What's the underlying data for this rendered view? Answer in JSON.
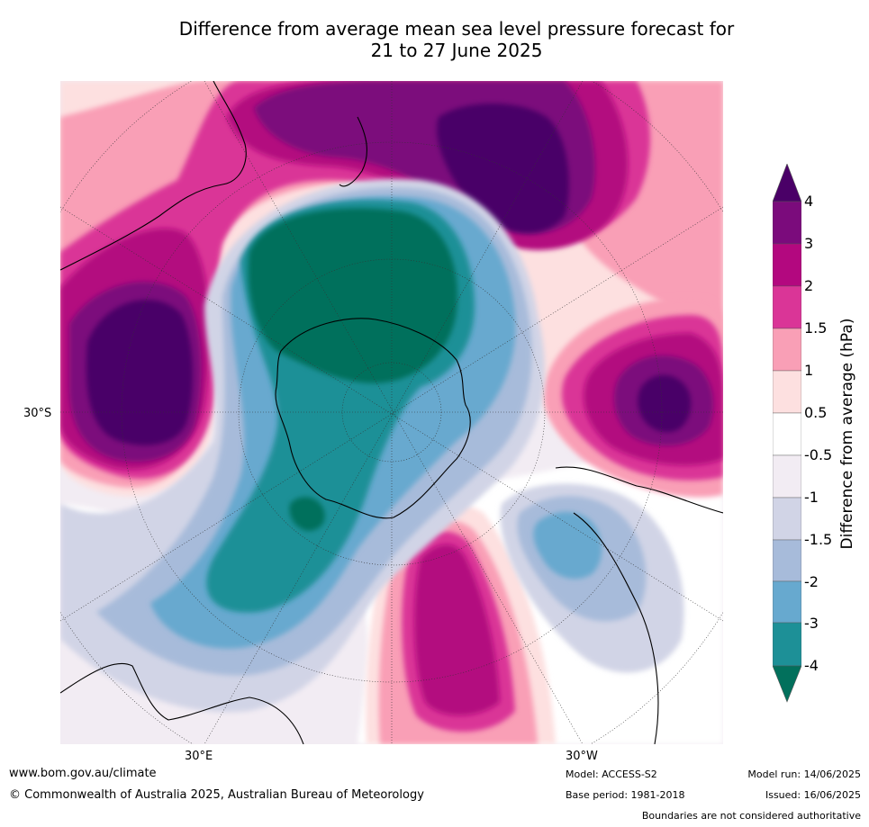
{
  "title_line1": "Difference from average mean sea level pressure forecast for",
  "title_line2": "21 to 27 June 2025",
  "map": {
    "lat_label": "30°S",
    "lon_label_east": "30°E",
    "lon_label_west": "30°W"
  },
  "colorbar": {
    "label": "Difference from average (hPa)",
    "ticks": [
      "4",
      "3",
      "2",
      "1.5",
      "1",
      "0.5",
      "-0.5",
      "-1",
      "-1.5",
      "-2",
      "-3",
      "-4"
    ],
    "colors_top_to_bottom": [
      "#4a0067",
      "#7b0b7c",
      "#b3087f",
      "#da3597",
      "#f99fb6",
      "#fde0e0",
      "#ffffff",
      "#f2ecf3",
      "#d1d4e6",
      "#a7bbda",
      "#67a9cf",
      "#1d9097",
      "#02705c"
    ]
  },
  "footer": {
    "url": "www.bom.gov.au/climate",
    "copyright": "© Commonwealth of Australia 2025, Australian Bureau of Meteorology",
    "model": "Model: ACCESS-S2",
    "base_period": "Base period: 1981-2018",
    "model_run": "Model run: 14/06/2025",
    "issued": "Issued: 16/06/2025",
    "disclaimer": "Boundaries are not considered authoritative"
  }
}
